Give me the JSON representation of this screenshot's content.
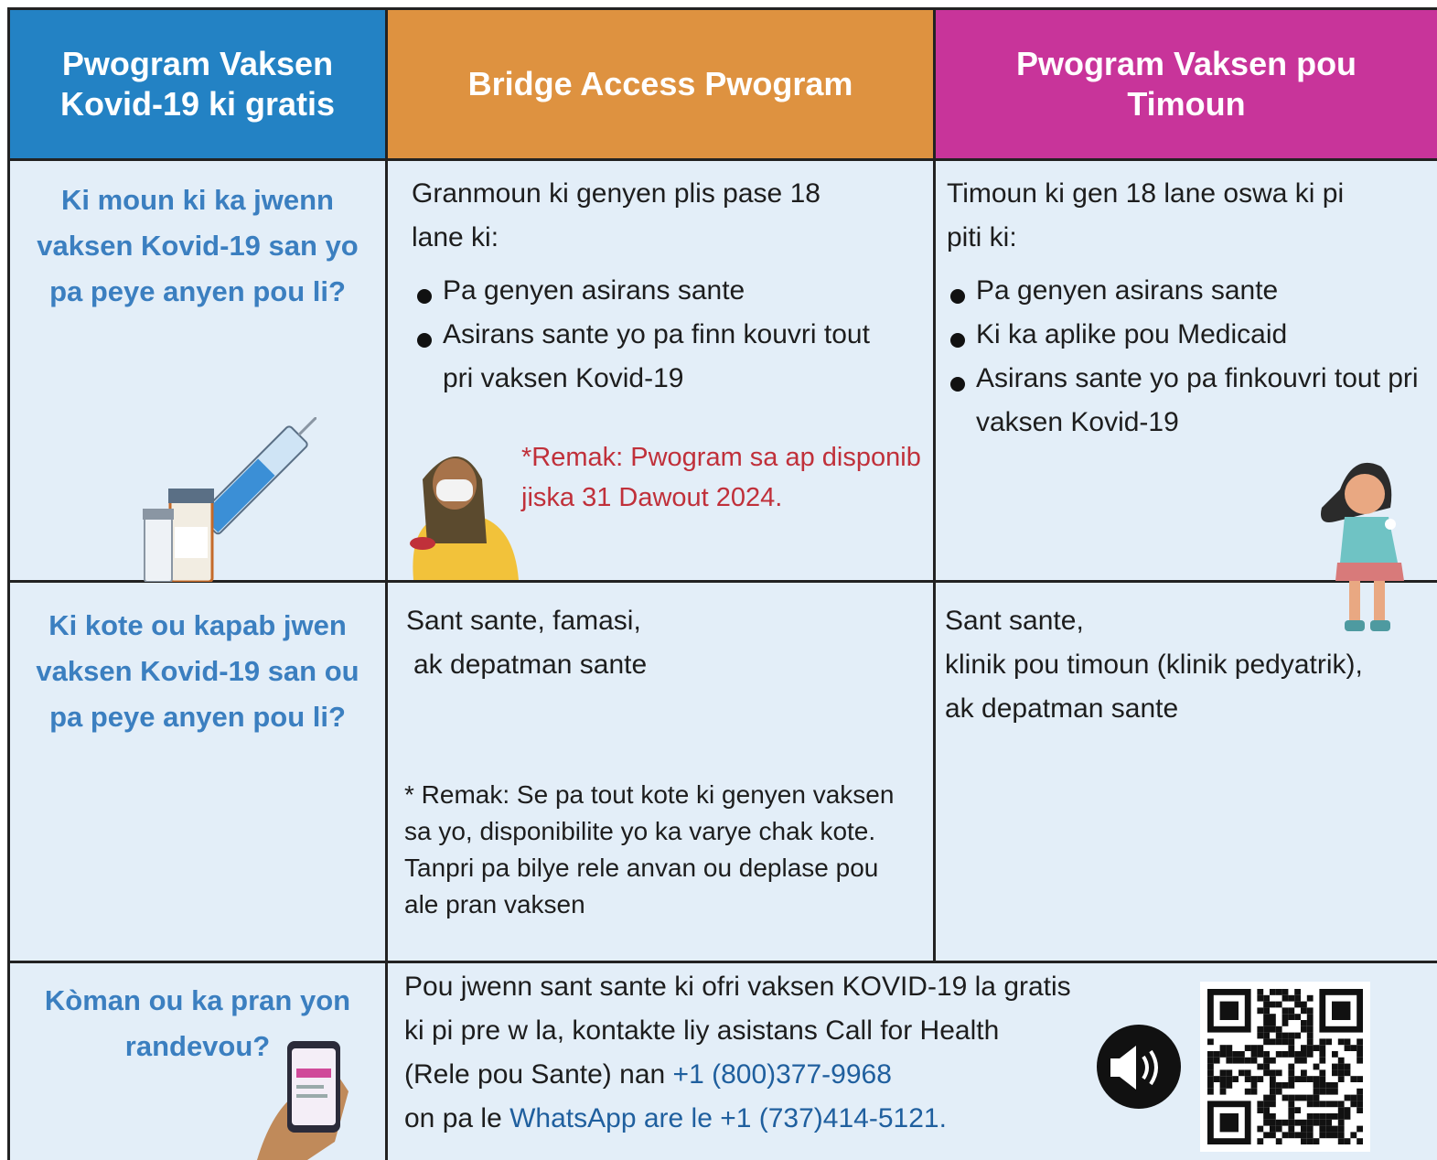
{
  "table": {
    "headers": [
      "Pwogram Vaksen Kovid-19 ki gratis",
      "Bridge Access Pwogram",
      "Pwogram Vaksen pou Timoun"
    ],
    "rows": [
      {
        "question": "Ki moun ki ka jwenn vaksen Kovid-19 san yo pa peye anyen pou li?",
        "bridge": {
          "intro": "Granmoun ki genyen plis pase 18 lane ki:",
          "bullets": [
            "Pa genyen asirans sante",
            "Asirans sante yo pa finn kouvri tout pri vaksen Kovid-19"
          ],
          "note": "*Remak: Pwogram sa ap disponib jiska 31 Dawout 2024."
        },
        "children": {
          "intro": "Timoun ki gen 18 lane oswa ki pi piti ki:",
          "bullets": [
            "Pa genyen asirans sante",
            "Ki ka aplike pou Medicaid",
            "Asirans sante yo pa finkouvri tout pri vaksen Kovid-19"
          ]
        }
      },
      {
        "question": "Ki kote ou kapab jwen vaksen Kovid-19 san ou pa peye anyen pou li?",
        "bridge": {
          "lines": [
            "Sant sante, famasi,",
            "ak depatman sante"
          ],
          "note": "* Remak: Se pa tout kote ki genyen vaksen sa yo, disponibilite yo ka varye chak kote. Tanpri pa bilye rele anvan ou deplase pou ale pran vaksen"
        },
        "children": {
          "lines": [
            "Sant sante,",
            "klinik pou timoun (klinik pedyatrik),",
            "ak depatman sante"
          ]
        }
      },
      {
        "question": "Kòman ou ka pran yon randevou?",
        "contact": {
          "lines": [
            "Pou jwenn sant sante ki ofri vaksen KOVID-19 la gratis",
            "ki pi pre w la, kontakte liy asistans Call for Health"
          ],
          "phone_prefix": "(Rele pou Sante) nan",
          "phone": "+1 (800)377-9968",
          "whatsapp_prefix": "on pa le",
          "whatsapp": "WhatsApp are le +1 (737)414-5121."
        }
      }
    ]
  }
}
